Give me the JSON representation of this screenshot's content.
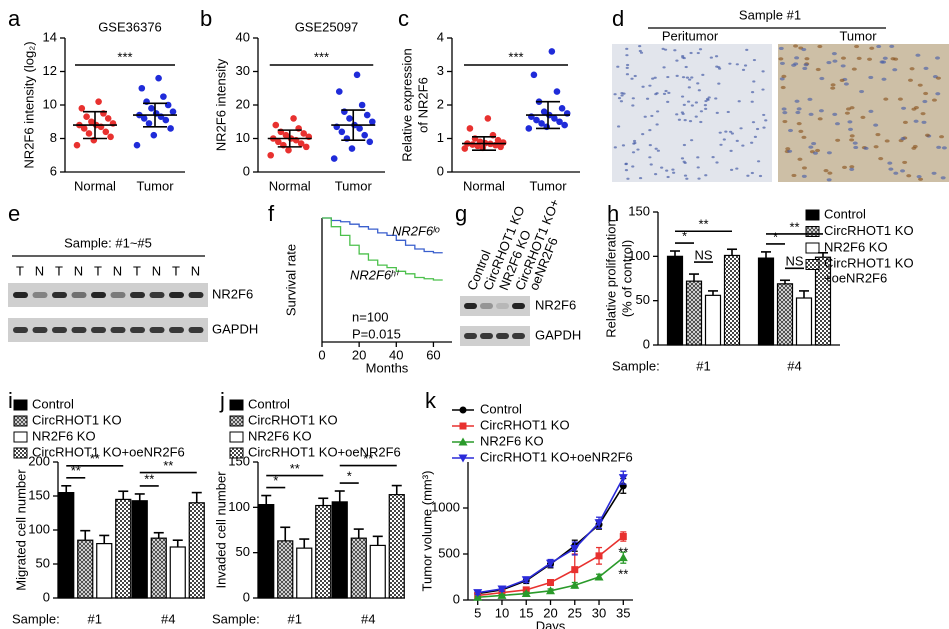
{
  "chart_data": [
    {
      "panel": "a",
      "type": "dot",
      "title": "GSE36376",
      "ylabel": [
        "NR2F6 intensity (log₂)"
      ],
      "ylim": [
        6,
        14
      ],
      "yticks": [
        6,
        8,
        10,
        12,
        14
      ],
      "groups": [
        {
          "name": "Normal",
          "color": "#e8312f",
          "mean": 8.8,
          "sd": 0.8,
          "values": [
            7.6,
            7.9,
            8.1,
            8.3,
            8.4,
            8.6,
            8.7,
            8.8,
            8.8,
            8.9,
            9.0,
            9.2,
            9.3,
            9.5,
            9.8,
            10.2
          ]
        },
        {
          "name": "Tumor",
          "color": "#1f2bd9",
          "mean": 9.4,
          "sd": 0.7,
          "values": [
            7.6,
            8.2,
            8.6,
            8.9,
            9.1,
            9.2,
            9.3,
            9.4,
            9.5,
            9.6,
            9.8,
            10.0,
            10.2,
            10.5,
            11.0,
            11.6
          ]
        }
      ],
      "annotations": [
        "***"
      ]
    },
    {
      "panel": "b",
      "type": "dot",
      "title": "GSE25097",
      "ylabel": [
        "NR2F6 intensity"
      ],
      "ylim": [
        0,
        40
      ],
      "yticks": [
        0,
        10,
        20,
        30,
        40
      ],
      "groups": [
        {
          "name": "Normal",
          "color": "#e8312f",
          "mean": 10,
          "sd": 2.5,
          "values": [
            5,
            6.5,
            7.5,
            8,
            8.5,
            9,
            9.5,
            10,
            10,
            10.5,
            11,
            11.5,
            12,
            13,
            14,
            16
          ]
        },
        {
          "name": "Tumor",
          "color": "#1f2bd9",
          "mean": 14,
          "sd": 4.5,
          "values": [
            4,
            7,
            9,
            10,
            11,
            12,
            13,
            13.5,
            14,
            15,
            16,
            17,
            18,
            20,
            24,
            29
          ]
        }
      ],
      "annotations": [
        "***"
      ]
    },
    {
      "panel": "c",
      "type": "dot",
      "ylabel": [
        "Relative  expression",
        "of NR2F6"
      ],
      "ylim": [
        0,
        4
      ],
      "yticks": [
        0,
        1,
        2,
        3,
        4
      ],
      "groups": [
        {
          "name": "Normal",
          "color": "#e8312f",
          "mean": 0.85,
          "sd": 0.2,
          "values": [
            0.7,
            0.72,
            0.75,
            0.78,
            0.8,
            0.82,
            0.84,
            0.85,
            0.86,
            0.88,
            0.9,
            0.95,
            1.0,
            1.1,
            1.3,
            1.6
          ]
        },
        {
          "name": "Tumor",
          "color": "#1f2bd9",
          "mean": 1.7,
          "sd": 0.4,
          "values": [
            1.3,
            1.35,
            1.4,
            1.45,
            1.5,
            1.55,
            1.6,
            1.65,
            1.7,
            1.75,
            1.8,
            1.9,
            2.1,
            2.4,
            2.9,
            3.6
          ]
        }
      ],
      "annotations": [
        "***"
      ]
    },
    {
      "panel": "f",
      "type": "step",
      "ylabel": [
        "Survival rate"
      ],
      "xlabel": "Months",
      "xlim": [
        0,
        70
      ],
      "xticks": [
        0,
        20,
        40,
        60
      ],
      "ylim": [
        0,
        1
      ],
      "x": [
        0,
        5,
        10,
        15,
        20,
        25,
        30,
        35,
        40,
        45,
        50,
        55,
        60,
        65
      ],
      "series": [
        {
          "name": "NR2F6ˡᵒ",
          "color": "#3a5fcd",
          "values": [
            1,
            0.98,
            0.97,
            0.95,
            0.93,
            0.91,
            0.88,
            0.86,
            0.82,
            0.78,
            0.75,
            0.73,
            0.72,
            0.72
          ]
        },
        {
          "name": "NR2F6ʰⁱ",
          "color": "#4cc04c",
          "values": [
            1,
            0.93,
            0.86,
            0.78,
            0.71,
            0.66,
            0.62,
            0.6,
            0.57,
            0.55,
            0.52,
            0.51,
            0.5,
            0.5
          ]
        }
      ],
      "annotations": [
        "n=100",
        "P=0.015"
      ]
    },
    {
      "panel": "h",
      "type": "bar",
      "ylabel": [
        "Relative proliferation",
        "(% of control)"
      ],
      "xlabel": "Sample:",
      "categories": [
        "#1",
        "#4"
      ],
      "ylim": [
        0,
        150
      ],
      "yticks": [
        0,
        50,
        100,
        150
      ],
      "series": [
        {
          "name": "Control",
          "color": "#000000",
          "values": [
            100,
            98
          ],
          "errors": [
            6,
            7
          ]
        },
        {
          "name": "CircRHOT1 KO",
          "color": "#444444",
          "pattern": "crosshatch",
          "values": [
            72,
            69
          ],
          "errors": [
            8,
            4
          ]
        },
        {
          "name": "NR2F6 KO",
          "color": "#ffffff",
          "values": [
            56,
            53
          ],
          "errors": [
            5,
            8
          ]
        },
        {
          "name": "CircRHOT1 KO +oeNR2F6",
          "color": "#444444",
          "pattern": "checker",
          "values": [
            101,
            99
          ],
          "errors": [
            7,
            5
          ]
        }
      ],
      "annotations": [
        "*",
        "**",
        "NS",
        "*",
        "**",
        "NS"
      ]
    },
    {
      "panel": "i",
      "type": "bar",
      "ylabel": [
        "Migrated cell number"
      ],
      "xlabel": "Sample:",
      "categories": [
        "#1",
        "#4"
      ],
      "ylim": [
        0,
        200
      ],
      "yticks": [
        0,
        50,
        100,
        150,
        200
      ],
      "series": [
        {
          "name": "Control",
          "color": "#000000",
          "values": [
            155,
            143
          ],
          "errors": [
            10,
            10
          ]
        },
        {
          "name": "CircRHOT1 KO",
          "color": "#444444",
          "pattern": "crosshatch",
          "values": [
            85,
            88
          ],
          "errors": [
            14,
            8
          ]
        },
        {
          "name": "NR2F6 KO",
          "color": "#ffffff",
          "values": [
            80,
            75
          ],
          "errors": [
            12,
            10
          ]
        },
        {
          "name": "CircRHOT1 KO+oeNR2F6",
          "color": "#444444",
          "pattern": "checker",
          "values": [
            145,
            140
          ],
          "errors": [
            12,
            15
          ]
        }
      ],
      "annotations": [
        "**",
        "**",
        "**",
        "**"
      ]
    },
    {
      "panel": "j",
      "type": "bar",
      "ylabel": [
        "Invaded cell number"
      ],
      "xlabel": "Sample:",
      "categories": [
        "#1",
        "#4"
      ],
      "ylim": [
        0,
        150
      ],
      "yticks": [
        0,
        50,
        100,
        150
      ],
      "series": [
        {
          "name": "Control",
          "color": "#000000",
          "values": [
            103,
            106
          ],
          "errors": [
            10,
            12
          ]
        },
        {
          "name": "CircRHOT1 KO",
          "color": "#444444",
          "pattern": "crosshatch",
          "values": [
            63,
            66
          ],
          "errors": [
            15,
            10
          ]
        },
        {
          "name": "NR2F6 KO",
          "color": "#ffffff",
          "values": [
            55,
            58
          ],
          "errors": [
            10,
            10
          ]
        },
        {
          "name": "CircRHOT1 KO+oeNR2F6",
          "color": "#444444",
          "pattern": "checker",
          "values": [
            102,
            114
          ],
          "errors": [
            8,
            10
          ]
        }
      ],
      "annotations": [
        "*",
        "**",
        "*",
        "**"
      ]
    },
    {
      "panel": "k",
      "type": "line",
      "ylabel": [
        "Tumor volume (mm³)"
      ],
      "xlabel": "Days",
      "xlim": [
        3,
        37
      ],
      "xticks": [
        5,
        10,
        15,
        20,
        25,
        30,
        35
      ],
      "ylim": [
        0,
        1500
      ],
      "yticks": [
        0,
        500,
        1000
      ],
      "x": [
        5,
        10,
        15,
        20,
        25,
        30,
        35
      ],
      "series": [
        {
          "name": "Control",
          "color": "#000000",
          "marker": "circle",
          "values": [
            70,
            110,
            210,
            390,
            590,
            820,
            1240
          ],
          "errors": [
            20,
            25,
            30,
            40,
            60,
            50,
            80
          ]
        },
        {
          "name": "CircRHOT1 KO",
          "color": "#e8312f",
          "marker": "square",
          "values": [
            50,
            80,
            110,
            190,
            330,
            480,
            690
          ],
          "errors": [
            10,
            15,
            20,
            30,
            170,
            90,
            50
          ]
        },
        {
          "name": "NR2F6 KO",
          "color": "#2a9a2a",
          "marker": "triangle",
          "values": [
            30,
            50,
            70,
            100,
            160,
            250,
            460
          ],
          "errors": [
            10,
            10,
            15,
            20,
            30,
            30,
            60
          ]
        },
        {
          "name": "CircRHOT1 KO+oeNR2F6",
          "color": "#2b2bd9",
          "marker": "triangle-down",
          "values": [
            80,
            120,
            220,
            400,
            560,
            840,
            1330
          ],
          "errors": [
            20,
            25,
            30,
            40,
            70,
            60,
            70
          ]
        }
      ],
      "annotations": [
        "**",
        "**"
      ]
    }
  ],
  "histology": {
    "panel": "d",
    "title": "Sample #1",
    "left": "Peritumor",
    "right": "Tumor"
  },
  "blot_e": {
    "panel": "e",
    "header": "Sample: #1~#5",
    "lanes": [
      "T",
      "N",
      "T",
      "N",
      "T",
      "N",
      "T",
      "N",
      "T",
      "N"
    ],
    "bands": [
      "NR2F6",
      "GAPDH"
    ]
  },
  "blot_g": {
    "panel": "g",
    "lanes": [
      [
        "Control"
      ],
      [
        "CircRHOT1 KO"
      ],
      [
        "NR2F6 KO"
      ],
      [
        "CircRHOT1 KO+",
        "oeNR2F6"
      ]
    ],
    "bands": [
      "NR2F6",
      "GAPDH"
    ]
  }
}
